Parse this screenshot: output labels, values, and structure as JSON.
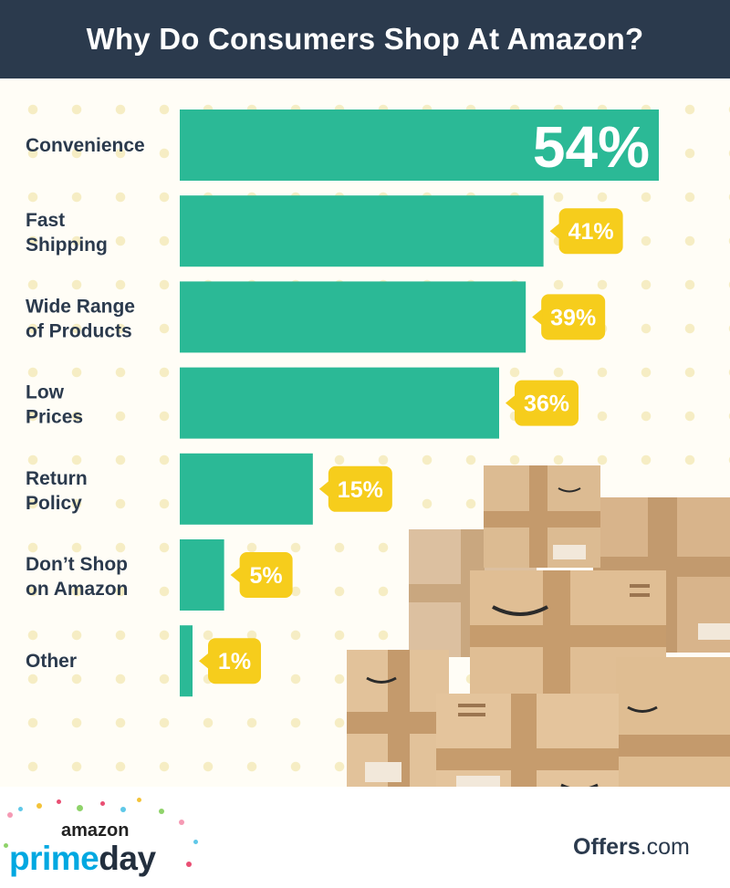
{
  "title": "Why Do Consumers Shop At Amazon?",
  "colors": {
    "bar": "#2bb996",
    "callout": "#f6cd1c",
    "header": "#2b3a4d",
    "label": "#2b3a4d"
  },
  "chart_data": {
    "type": "bar",
    "orientation": "horizontal",
    "title": "Why Do Consumers Shop At Amazon?",
    "categories": [
      [
        "Convenience"
      ],
      [
        "Fast",
        "Shipping"
      ],
      [
        "Wide Range",
        "of Products"
      ],
      [
        "Low",
        "Prices"
      ],
      [
        "Return",
        "Policy"
      ],
      [
        "Don’t Shop",
        "on Amazon"
      ],
      [
        "Other"
      ]
    ],
    "values": [
      54,
      41,
      39,
      36,
      15,
      5,
      1
    ],
    "value_labels": [
      "54%",
      "41%",
      "39%",
      "36%",
      "15%",
      "5%",
      "1%"
    ],
    "xlim": [
      0,
      54
    ]
  },
  "branding": {
    "amazon": "amazon",
    "prime": "prime",
    "day": "day",
    "offers": "Offers",
    "offers_suffix": ".com"
  }
}
